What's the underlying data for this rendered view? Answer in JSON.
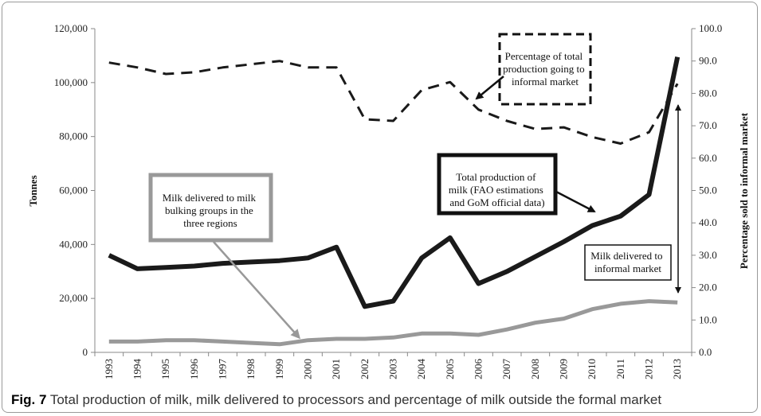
{
  "chart_data": {
    "type": "line",
    "x": [
      "1993",
      "1994",
      "1995",
      "1996",
      "1997",
      "1998",
      "1999",
      "2000",
      "2001",
      "2002",
      "2003",
      "2004",
      "2005",
      "2006",
      "2007",
      "2008",
      "2009",
      "2010",
      "2011",
      "2012",
      "2013"
    ],
    "y_left": {
      "label": "Tonnes",
      "range": [
        0,
        120000
      ],
      "ticks": [
        "0",
        "20,000",
        "40,000",
        "60,000",
        "80,000",
        "100,000",
        "120,000"
      ],
      "tick_values": [
        0,
        20000,
        40000,
        60000,
        80000,
        100000,
        120000
      ]
    },
    "y_right": {
      "label": "Percentage sold to informal  market",
      "range": [
        0,
        100
      ],
      "ticks": [
        "0.0",
        "10.0",
        "20.0",
        "30.0",
        "40.0",
        "50.0",
        "60.0",
        "70.0",
        "80.0",
        "90.0",
        "100.0"
      ],
      "tick_values": [
        0,
        10,
        20,
        30,
        40,
        50,
        60,
        70,
        80,
        90,
        100
      ]
    },
    "grid": false,
    "series": [
      {
        "key": "total",
        "axis": "left",
        "color": "#1a1a1a",
        "style": "solid-thick",
        "values": [
          36000,
          31000,
          31500,
          32000,
          33000,
          33500,
          34000,
          35000,
          39000,
          17000,
          19000,
          35000,
          42500,
          25500,
          30000,
          35500,
          41000,
          47000,
          50500,
          58500,
          109500
        ]
      },
      {
        "key": "delivered",
        "axis": "left",
        "color": "#999999",
        "style": "solid-thick",
        "values": [
          4000,
          4000,
          4500,
          4500,
          4000,
          3500,
          3000,
          4500,
          5000,
          5000,
          5500,
          7000,
          7000,
          6500,
          8500,
          11000,
          12500,
          16000,
          18000,
          19000,
          18500
        ]
      },
      {
        "key": "pct_informal",
        "axis": "right",
        "color": "#1a1a1a",
        "style": "dashed",
        "values": [
          89.5,
          88,
          86,
          86.5,
          88,
          89,
          90,
          88,
          88,
          72,
          71.5,
          81,
          83.5,
          75,
          71.5,
          69,
          69.5,
          66.5,
          64.5,
          68,
          83
        ]
      }
    ],
    "annotations": [
      {
        "key": "pct",
        "lines": [
          "Percentage of total",
          "production going to",
          "informal market"
        ],
        "box": "dashed"
      },
      {
        "key": "total",
        "lines": [
          "Total production of",
          "milk  (FAO estimations",
          "and GoM official data)"
        ],
        "box": "thick-black"
      },
      {
        "key": "delivered",
        "lines": [
          "Milk delivered to milk",
          "bulking groups  in the",
          "three regions"
        ],
        "box": "thick-gray"
      },
      {
        "key": "informal",
        "lines": [
          "Milk delivered to",
          "informal market"
        ],
        "box": "thin"
      }
    ]
  },
  "caption": {
    "prefix": "Fig. 7",
    "text": " Total production of milk, milk delivered to processors and percentage of milk outside the formal market"
  }
}
